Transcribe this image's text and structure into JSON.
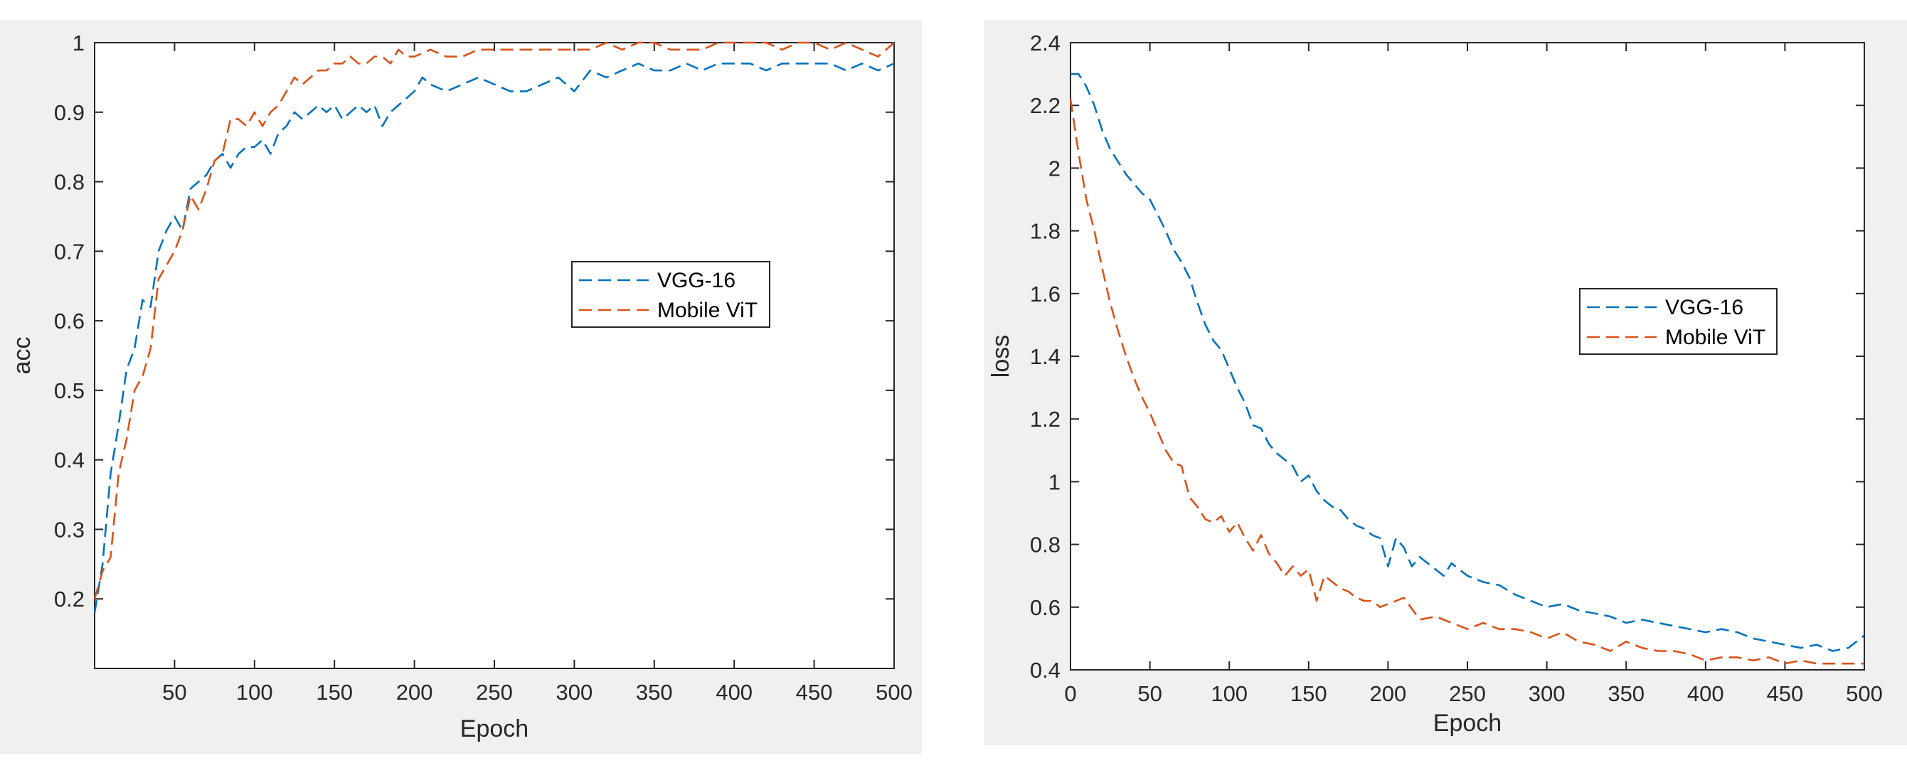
{
  "chart_data": [
    {
      "type": "line",
      "title": "",
      "xlabel": "Epoch",
      "ylabel": "acc",
      "xlim": [
        0,
        500
      ],
      "ylim": [
        0.1,
        1.0
      ],
      "xticks": [
        50,
        100,
        150,
        200,
        250,
        300,
        350,
        400,
        450,
        500
      ],
      "yticks": [
        0.2,
        0.3,
        0.4,
        0.5,
        0.6,
        0.7,
        0.8,
        0.9,
        1
      ],
      "xtick_labels": [
        "50",
        "100",
        "150",
        "200",
        "250",
        "300",
        "350",
        "400",
        "450",
        "500"
      ],
      "ytick_labels": [
        "0.2",
        "0.3",
        "0.4",
        "0.5",
        "0.6",
        "0.7",
        "0.8",
        "0.9",
        "1"
      ],
      "grid": false,
      "legend_position": "right-middle",
      "series": [
        {
          "name": "VGG-16",
          "color": "#0072BD",
          "style": "dashed",
          "x": [
            0,
            5,
            10,
            15,
            20,
            25,
            30,
            35,
            40,
            45,
            50,
            55,
            60,
            65,
            70,
            75,
            80,
            85,
            90,
            95,
            100,
            105,
            110,
            115,
            120,
            125,
            130,
            135,
            140,
            145,
            150,
            155,
            160,
            165,
            170,
            175,
            180,
            185,
            190,
            195,
            200,
            205,
            210,
            220,
            230,
            240,
            250,
            260,
            270,
            280,
            290,
            300,
            310,
            320,
            330,
            340,
            350,
            360,
            370,
            380,
            390,
            400,
            410,
            420,
            430,
            440,
            450,
            460,
            470,
            480,
            490,
            500
          ],
          "values": [
            0.18,
            0.25,
            0.38,
            0.45,
            0.53,
            0.56,
            0.63,
            0.62,
            0.7,
            0.73,
            0.75,
            0.73,
            0.79,
            0.8,
            0.81,
            0.83,
            0.84,
            0.82,
            0.84,
            0.85,
            0.85,
            0.86,
            0.84,
            0.87,
            0.88,
            0.9,
            0.89,
            0.9,
            0.91,
            0.9,
            0.91,
            0.89,
            0.9,
            0.91,
            0.9,
            0.91,
            0.88,
            0.9,
            0.91,
            0.92,
            0.93,
            0.95,
            0.94,
            0.93,
            0.94,
            0.95,
            0.94,
            0.93,
            0.93,
            0.94,
            0.95,
            0.93,
            0.96,
            0.95,
            0.96,
            0.97,
            0.96,
            0.96,
            0.97,
            0.96,
            0.97,
            0.97,
            0.97,
            0.96,
            0.97,
            0.97,
            0.97,
            0.97,
            0.96,
            0.97,
            0.96,
            0.97
          ]
        },
        {
          "name": "Mobile ViT",
          "color": "#D95319",
          "style": "dashed",
          "x": [
            0,
            5,
            10,
            15,
            20,
            25,
            30,
            35,
            40,
            45,
            50,
            55,
            60,
            65,
            70,
            75,
            80,
            85,
            90,
            95,
            100,
            105,
            110,
            115,
            120,
            125,
            130,
            135,
            140,
            145,
            150,
            155,
            160,
            165,
            170,
            175,
            180,
            185,
            190,
            195,
            200,
            210,
            220,
            230,
            240,
            250,
            260,
            270,
            280,
            290,
            300,
            310,
            320,
            330,
            340,
            350,
            360,
            370,
            380,
            390,
            400,
            410,
            420,
            430,
            440,
            450,
            460,
            470,
            480,
            490,
            500
          ],
          "values": [
            0.2,
            0.24,
            0.26,
            0.38,
            0.43,
            0.5,
            0.52,
            0.56,
            0.66,
            0.68,
            0.7,
            0.73,
            0.78,
            0.76,
            0.79,
            0.83,
            0.84,
            0.89,
            0.89,
            0.88,
            0.9,
            0.88,
            0.9,
            0.91,
            0.93,
            0.95,
            0.94,
            0.95,
            0.96,
            0.96,
            0.97,
            0.97,
            0.98,
            0.97,
            0.97,
            0.98,
            0.98,
            0.97,
            0.99,
            0.98,
            0.98,
            0.99,
            0.98,
            0.98,
            0.99,
            0.99,
            0.99,
            0.99,
            0.99,
            0.99,
            0.99,
            0.99,
            1.0,
            0.99,
            1.0,
            1.0,
            0.99,
            0.99,
            0.99,
            1.0,
            1.0,
            1.0,
            1.0,
            0.99,
            1.0,
            1.0,
            0.99,
            1.0,
            0.99,
            0.98,
            1.0
          ]
        }
      ]
    },
    {
      "type": "line",
      "title": "",
      "xlabel": "Epoch",
      "ylabel": "loss",
      "xlim": [
        0,
        500
      ],
      "ylim": [
        0.4,
        2.4
      ],
      "xticks": [
        0,
        50,
        100,
        150,
        200,
        250,
        300,
        350,
        400,
        450,
        500
      ],
      "yticks": [
        0.4,
        0.6,
        0.8,
        1,
        1.2,
        1.4,
        1.6,
        1.8,
        2,
        2.2,
        2.4
      ],
      "xtick_labels": [
        "0",
        "50",
        "100",
        "150",
        "200",
        "250",
        "300",
        "350",
        "400",
        "450",
        "500"
      ],
      "ytick_labels": [
        "0.4",
        "0.6",
        "0.8",
        "1",
        "1.2",
        "1.4",
        "1.6",
        "1.8",
        "2",
        "2.2",
        "2.4"
      ],
      "grid": false,
      "legend_position": "right-middle",
      "series": [
        {
          "name": "VGG-16",
          "color": "#0072BD",
          "style": "dashed",
          "x": [
            0,
            5,
            10,
            15,
            20,
            25,
            30,
            35,
            40,
            45,
            50,
            55,
            60,
            65,
            70,
            75,
            80,
            85,
            90,
            95,
            100,
            105,
            110,
            115,
            120,
            125,
            130,
            135,
            140,
            145,
            150,
            155,
            160,
            165,
            170,
            175,
            180,
            185,
            190,
            195,
            200,
            205,
            210,
            215,
            220,
            225,
            230,
            235,
            240,
            245,
            250,
            260,
            270,
            280,
            290,
            300,
            310,
            320,
            330,
            340,
            350,
            360,
            370,
            380,
            390,
            400,
            410,
            420,
            430,
            440,
            450,
            460,
            470,
            480,
            490,
            500
          ],
          "values": [
            2.3,
            2.3,
            2.26,
            2.2,
            2.12,
            2.06,
            2.02,
            1.98,
            1.95,
            1.92,
            1.9,
            1.85,
            1.8,
            1.74,
            1.7,
            1.65,
            1.57,
            1.5,
            1.45,
            1.42,
            1.36,
            1.3,
            1.25,
            1.18,
            1.17,
            1.12,
            1.09,
            1.07,
            1.05,
            1.0,
            1.02,
            0.97,
            0.94,
            0.92,
            0.91,
            0.88,
            0.86,
            0.85,
            0.83,
            0.82,
            0.73,
            0.82,
            0.79,
            0.73,
            0.76,
            0.74,
            0.72,
            0.7,
            0.74,
            0.72,
            0.7,
            0.68,
            0.67,
            0.64,
            0.62,
            0.6,
            0.61,
            0.59,
            0.58,
            0.57,
            0.55,
            0.56,
            0.55,
            0.54,
            0.53,
            0.52,
            0.53,
            0.52,
            0.5,
            0.49,
            0.48,
            0.47,
            0.48,
            0.46,
            0.47,
            0.51
          ]
        },
        {
          "name": "Mobile ViT",
          "color": "#D95319",
          "style": "dashed",
          "x": [
            0,
            5,
            10,
            15,
            20,
            25,
            30,
            35,
            40,
            45,
            50,
            55,
            60,
            65,
            70,
            75,
            80,
            85,
            90,
            95,
            100,
            105,
            110,
            115,
            120,
            125,
            130,
            135,
            140,
            145,
            150,
            155,
            160,
            165,
            170,
            175,
            180,
            185,
            190,
            195,
            200,
            210,
            220,
            230,
            240,
            250,
            260,
            270,
            280,
            290,
            300,
            310,
            320,
            330,
            340,
            350,
            360,
            370,
            380,
            390,
            400,
            410,
            420,
            430,
            440,
            450,
            460,
            470,
            480,
            490,
            500
          ],
          "values": [
            2.22,
            2.05,
            1.9,
            1.8,
            1.68,
            1.57,
            1.48,
            1.4,
            1.33,
            1.27,
            1.22,
            1.16,
            1.1,
            1.06,
            1.05,
            0.95,
            0.92,
            0.88,
            0.87,
            0.89,
            0.84,
            0.87,
            0.82,
            0.78,
            0.83,
            0.77,
            0.74,
            0.7,
            0.73,
            0.7,
            0.72,
            0.62,
            0.7,
            0.68,
            0.66,
            0.65,
            0.63,
            0.62,
            0.62,
            0.6,
            0.61,
            0.63,
            0.56,
            0.57,
            0.55,
            0.53,
            0.55,
            0.53,
            0.53,
            0.52,
            0.5,
            0.52,
            0.49,
            0.48,
            0.46,
            0.49,
            0.47,
            0.46,
            0.46,
            0.45,
            0.43,
            0.44,
            0.44,
            0.43,
            0.44,
            0.42,
            0.43,
            0.42,
            0.42,
            0.42,
            0.42
          ]
        }
      ]
    }
  ]
}
